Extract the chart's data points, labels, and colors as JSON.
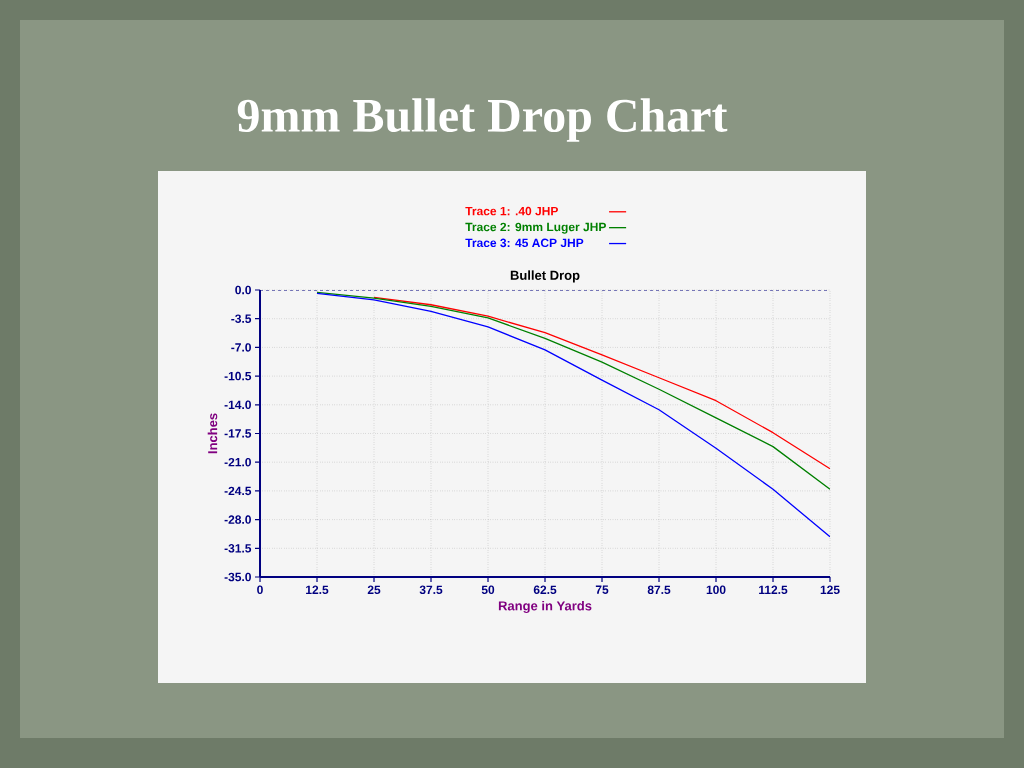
{
  "chart_data": {
    "type": "line",
    "title": "9mm Bullet Drop Chart",
    "subtitle": "Bullet Drop",
    "xlabel": "Range in Yards",
    "ylabel": "Inches",
    "x": [
      12.5,
      25,
      37.5,
      50,
      62.5,
      75,
      87.5,
      100,
      112.5,
      125
    ],
    "series": [
      {
        "name": "Trace 1:  .40 JHP",
        "color": "#ff0000",
        "values": [
          null,
          -0.9,
          -1.8,
          -3.2,
          -5.2,
          -7.9,
          -10.7,
          -13.5,
          -17.4,
          -21.8
        ]
      },
      {
        "name": "Trace 2:  9mm Luger JHP",
        "color": "#008000",
        "values": [
          -0.3,
          -1.0,
          -2.0,
          -3.4,
          -5.9,
          -8.8,
          -12.1,
          -15.6,
          -19.1,
          -24.3
        ]
      },
      {
        "name": "Trace 3:  45 ACP JHP",
        "color": "#0000ff",
        "values": [
          -0.4,
          -1.2,
          -2.6,
          -4.5,
          -7.3,
          -11.0,
          -14.6,
          -19.3,
          -24.3,
          -30.1
        ]
      }
    ],
    "xlim": [
      0,
      125
    ],
    "ylim": [
      -35,
      0
    ],
    "xticks": [
      0,
      12.5,
      25,
      37.5,
      50,
      62.5,
      75,
      87.5,
      100,
      112.5,
      125
    ],
    "yticks": [
      {
        "value": 0,
        "label": "0.0"
      },
      -3.5,
      {
        "value": -7,
        "label": "-7.0"
      },
      -10.5,
      {
        "value": -14,
        "label": "-14.0"
      },
      -17.5,
      {
        "value": -21,
        "label": "-21.0"
      },
      -24.5,
      {
        "value": -28,
        "label": "-28.0"
      },
      -31.5,
      {
        "value": -35,
        "label": "-35.0"
      }
    ],
    "ref_lines": [
      {
        "axis": "y",
        "value": 0,
        "color": "#000080",
        "line_style": "dashed"
      }
    ],
    "grid": true,
    "legend": "top",
    "marker": "none",
    "line_style": "solid"
  }
}
